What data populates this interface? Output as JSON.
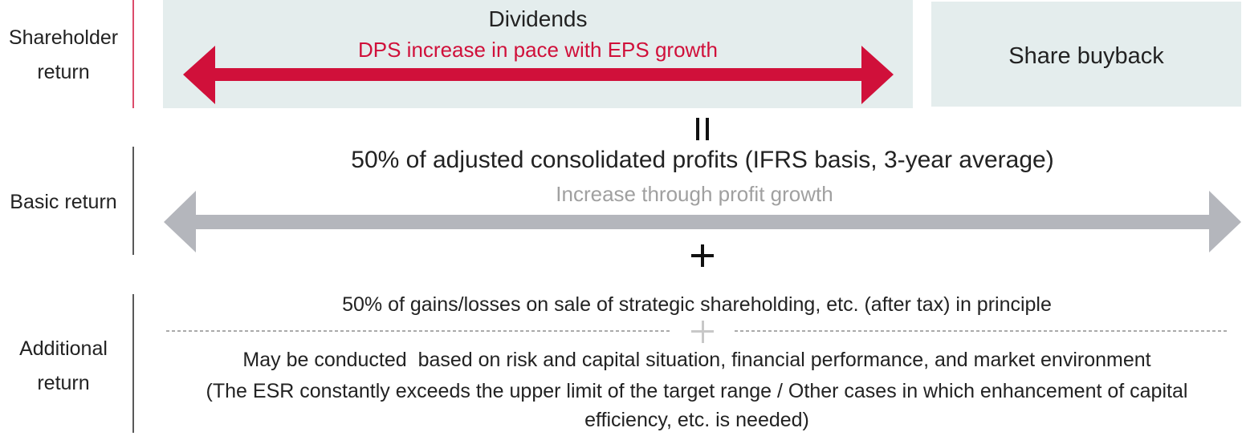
{
  "rows": [
    {
      "label": "Shareholder return"
    },
    {
      "label": "Basic return"
    },
    {
      "label": "Additional return"
    }
  ],
  "dividends": {
    "title": "Dividends",
    "arrow_text": "DPS increase in pace with EPS growth"
  },
  "buyback": {
    "title": "Share buyback"
  },
  "basic": {
    "text": "50% of adjusted consolidated profits (IFRS basis, 3-year average)",
    "arrow_text": "Increase through profit growth"
  },
  "additional": {
    "line1": "50% of gains/losses on sale of strategic shareholding, etc. (after tax) in principle",
    "line2": "May be conducted  based on risk and capital situation, financial performance, and market environment",
    "line3": "(The ESR constantly exceeds the upper limit of the target range / Other cases in which enhancement of capital efficiency, etc. is needed)"
  }
}
